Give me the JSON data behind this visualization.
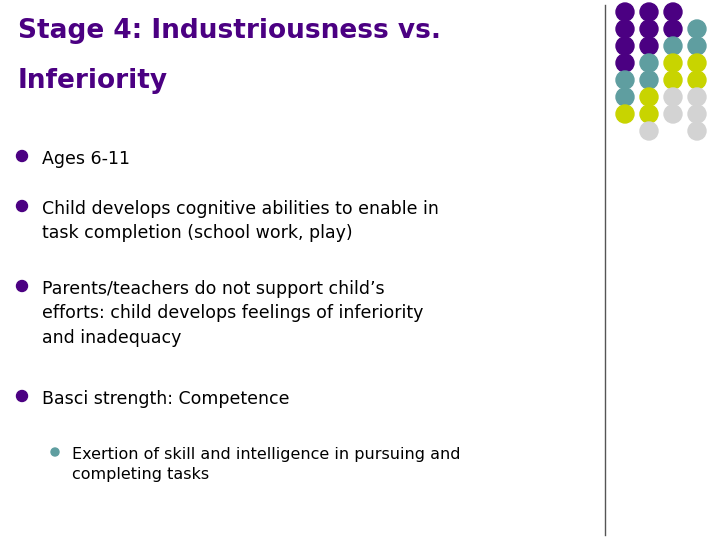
{
  "title_line1": "Stage 4: Industriousness vs.",
  "title_line2": "Inferiority",
  "title_color": "#4B0082",
  "background_color": "#FFFFFF",
  "bullet_color": "#4B0082",
  "sub_bullet_color": "#5F9EA0",
  "text_color": "#000000",
  "bullets": [
    "Ages 6-11",
    "Child develops cognitive abilities to enable in\ntask completion (school work, play)",
    "Parents/teachers do not support child’s\nefforts: child develops feelings of inferiority\nand inadequacy",
    "Basci strength: Competence"
  ],
  "sub_bullets": [
    "Exertion of skill and intelligence in pursuing and\ncompleting tasks"
  ],
  "dot_colors": [
    [
      "#4B0082",
      "#4B0082",
      "#4B0082",
      "null"
    ],
    [
      "#4B0082",
      "#4B0082",
      "#4B0082",
      "#5F9EA0"
    ],
    [
      "#4B0082",
      "#4B0082",
      "#5F9EA0",
      "#5F9EA0"
    ],
    [
      "#4B0082",
      "#5F9EA0",
      "#C8D400",
      "#C8D400"
    ],
    [
      "#5F9EA0",
      "#5F9EA0",
      "#C8D400",
      "#C8D400"
    ],
    [
      "#5F9EA0",
      "#C8D400",
      "#D3D3D3",
      "#D3D3D3"
    ],
    [
      "#C8D400",
      "#C8D400",
      "#D3D3D3",
      "#D3D3D3"
    ],
    [
      "null",
      "#D3D3D3",
      "null",
      "#D3D3D3"
    ]
  ],
  "figsize": [
    7.2,
    5.4
  ],
  "dpi": 100
}
